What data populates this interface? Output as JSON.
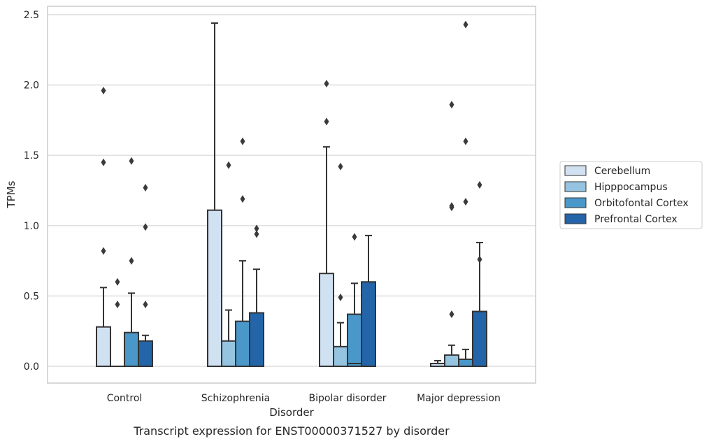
{
  "chart_data": {
    "type": "bar",
    "caption": "Transcript expression for ENST00000371527 by disorder",
    "xlabel": "Disorder",
    "ylabel": "TPMs",
    "ylim": [
      -0.12,
      2.57
    ],
    "yticks": [
      "0.0",
      "0.5",
      "1.0",
      "1.5",
      "2.0",
      "2.5"
    ],
    "categories": [
      "Control",
      "Schizophrenia",
      "Bipolar disorder",
      "Major depression"
    ],
    "grid": true,
    "legend_position": "right",
    "series": [
      {
        "name": "Cerebellum",
        "color": "#d0e1f2",
        "q1": [
          0.0,
          0.0,
          0.0,
          0.0
        ],
        "median": [
          0.0,
          0.0,
          0.0,
          0.0
        ],
        "q3": [
          0.28,
          1.11,
          0.66,
          0.02
        ],
        "whisker_high": [
          0.56,
          2.44,
          1.56,
          0.04
        ],
        "outliers": [
          [
            0.82,
            1.45,
            1.96
          ],
          [],
          [
            1.74,
            2.01
          ],
          []
        ]
      },
      {
        "name": "Hipppocampus",
        "color": "#94c4df",
        "q1": [
          0.0,
          0.0,
          0.0,
          0.0
        ],
        "median": [
          0.0,
          0.0,
          0.0,
          0.0
        ],
        "q3": [
          0.0,
          0.18,
          0.14,
          0.08
        ],
        "whisker_high": [
          0.0,
          0.4,
          0.31,
          0.15
        ],
        "outliers": [
          [
            0.44,
            0.6
          ],
          [
            1.43
          ],
          [
            0.49,
            1.42
          ],
          [
            0.37,
            1.13,
            1.14,
            1.86
          ]
        ]
      },
      {
        "name": "Orbitofontal Cortex",
        "color": "#4a98c9",
        "q1": [
          0.0,
          0.0,
          0.0,
          0.0
        ],
        "median": [
          0.0,
          0.0,
          0.02,
          0.0
        ],
        "q3": [
          0.24,
          0.32,
          0.37,
          0.05
        ],
        "whisker_high": [
          0.52,
          0.75,
          0.59,
          0.12
        ],
        "outliers": [
          [
            0.75,
            1.46
          ],
          [
            1.19,
            1.6
          ],
          [
            0.92
          ],
          [
            1.17,
            1.6,
            2.43
          ]
        ]
      },
      {
        "name": "Prefrontal Cortex",
        "color": "#2464a8",
        "q1": [
          0.0,
          0.0,
          0.0,
          0.0
        ],
        "median": [
          0.0,
          0.0,
          0.0,
          0.0
        ],
        "q3": [
          0.18,
          0.38,
          0.6,
          0.39
        ],
        "whisker_high": [
          0.22,
          0.69,
          0.93,
          0.88
        ],
        "outliers": [
          [
            0.44,
            0.99,
            1.27
          ],
          [
            0.94,
            0.98
          ],
          [],
          [
            0.76,
            1.29
          ]
        ]
      }
    ]
  }
}
